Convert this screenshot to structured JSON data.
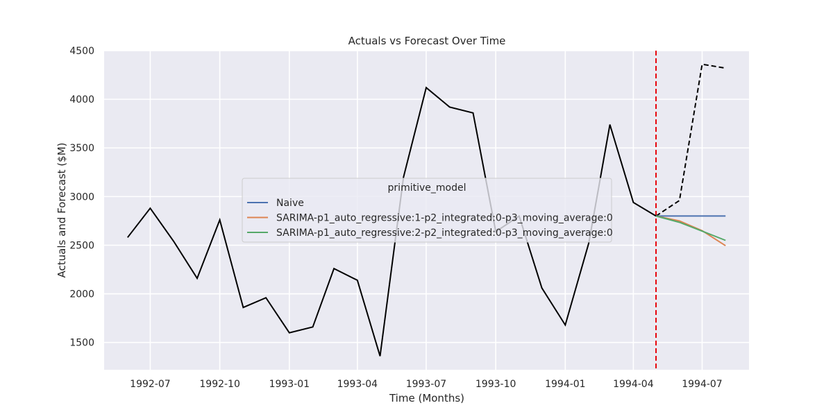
{
  "chart_data": {
    "type": "line",
    "title": "Actuals vs Forecast Over Time",
    "xlabel": "Time (Months)",
    "ylabel": "Actuals and Forecast ($M)",
    "xlim": [
      "1992-05-01",
      "1994-09-01"
    ],
    "ylim": [
      1220,
      4500
    ],
    "x_ticks": [
      "1992-07",
      "1992-10",
      "1993-01",
      "1993-04",
      "1993-07",
      "1993-10",
      "1994-01",
      "1994-04",
      "1994-07"
    ],
    "y_ticks": [
      1500,
      2000,
      2500,
      3000,
      3500,
      4000,
      4500
    ],
    "grid": true,
    "legend_position": "center-left",
    "legend_title": "primitive_model",
    "actuals": {
      "color": "#000000",
      "points": [
        {
          "x": "1992-06-01",
          "y": 2580
        },
        {
          "x": "1992-07-01",
          "y": 2880
        },
        {
          "x": "1992-08-01",
          "y": 2540
        },
        {
          "x": "1992-09-01",
          "y": 2160
        },
        {
          "x": "1992-10-01",
          "y": 2760
        },
        {
          "x": "1992-11-01",
          "y": 1860
        },
        {
          "x": "1992-12-01",
          "y": 1960
        },
        {
          "x": "1993-01-01",
          "y": 1600
        },
        {
          "x": "1993-02-01",
          "y": 1660
        },
        {
          "x": "1993-03-01",
          "y": 2260
        },
        {
          "x": "1993-04-01",
          "y": 2140
        },
        {
          "x": "1993-05-01",
          "y": 1360
        },
        {
          "x": "1993-06-01",
          "y": 3200
        },
        {
          "x": "1993-07-01",
          "y": 4120
        },
        {
          "x": "1993-08-01",
          "y": 3920
        },
        {
          "x": "1993-09-01",
          "y": 3860
        },
        {
          "x": "1993-10-01",
          "y": 2640
        },
        {
          "x": "1993-11-01",
          "y": 2800
        },
        {
          "x": "1993-12-01",
          "y": 2060
        },
        {
          "x": "1994-01-01",
          "y": 1680
        },
        {
          "x": "1994-02-01",
          "y": 2520
        },
        {
          "x": "1994-03-01",
          "y": 3740
        },
        {
          "x": "1994-04-01",
          "y": 2940
        },
        {
          "x": "1994-05-01",
          "y": 2800
        }
      ]
    },
    "holdout_actuals": {
      "color": "#000000",
      "style": "dashed",
      "points": [
        {
          "x": "1994-05-01",
          "y": 2800
        },
        {
          "x": "1994-06-01",
          "y": 2960
        },
        {
          "x": "1994-07-01",
          "y": 4360
        },
        {
          "x": "1994-08-01",
          "y": 4320
        }
      ]
    },
    "forecast_start": {
      "x": "1994-05-01",
      "color": "#e8000b"
    },
    "series": [
      {
        "name": "Naive",
        "color": "#4c72b0",
        "points": [
          {
            "x": "1994-05-01",
            "y": 2800
          },
          {
            "x": "1994-06-01",
            "y": 2800
          },
          {
            "x": "1994-07-01",
            "y": 2800
          },
          {
            "x": "1994-08-01",
            "y": 2800
          }
        ]
      },
      {
        "name": "SARIMA-p1_auto_regressive:1-p2_integrated:0-p3_moving_average:0",
        "color": "#dd8452",
        "points": [
          {
            "x": "1994-05-01",
            "y": 2800
          },
          {
            "x": "1994-06-01",
            "y": 2750
          },
          {
            "x": "1994-07-01",
            "y": 2650
          },
          {
            "x": "1994-08-01",
            "y": 2495
          }
        ]
      },
      {
        "name": "SARIMA-p1_auto_regressive:2-p2_integrated:0-p3_moving_average:0",
        "color": "#55a868",
        "points": [
          {
            "x": "1994-05-01",
            "y": 2800
          },
          {
            "x": "1994-06-01",
            "y": 2735
          },
          {
            "x": "1994-07-01",
            "y": 2645
          },
          {
            "x": "1994-08-01",
            "y": 2550
          }
        ]
      }
    ]
  }
}
